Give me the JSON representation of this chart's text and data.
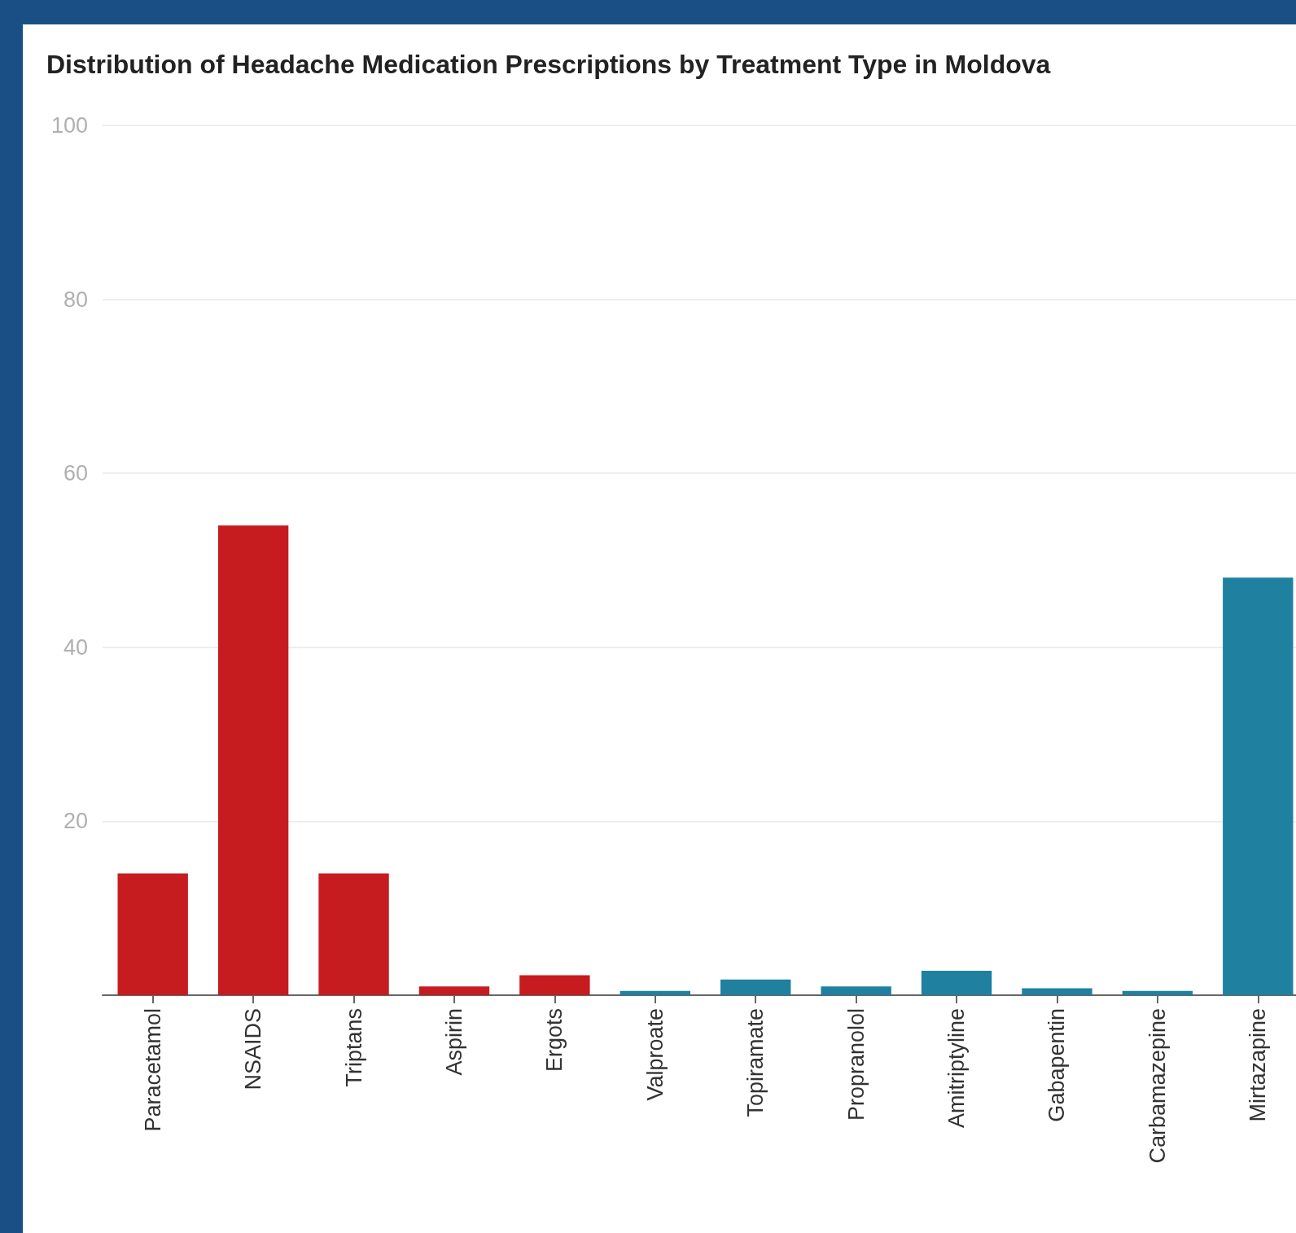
{
  "chart_data": {
    "type": "bar",
    "title": "Distribution of Headache Medication Prescriptions by Treatment Type in Moldova",
    "categories": [
      "Paracetamol",
      "NSAIDS",
      "Triptans",
      "Aspirin",
      "Ergots",
      "Valproate",
      "Topiramate",
      "Propranolol",
      "Amitriptyline",
      "Gabapentin",
      "Carbamazepine",
      "Mirtazapine"
    ],
    "values": [
      14,
      54,
      14,
      1,
      2.3,
      0.5,
      1.8,
      1,
      2.8,
      0.8,
      0.5,
      48
    ],
    "colors": [
      "#c61c1f",
      "#c61c1f",
      "#c61c1f",
      "#c61c1f",
      "#c61c1f",
      "#1f80a0",
      "#1f80a0",
      "#1f80a0",
      "#1f80a0",
      "#1f80a0",
      "#1f80a0",
      "#1f80a0"
    ],
    "ylim": [
      0,
      100
    ],
    "yticks": [
      20,
      40,
      60,
      80,
      100
    ],
    "grid": "y"
  }
}
